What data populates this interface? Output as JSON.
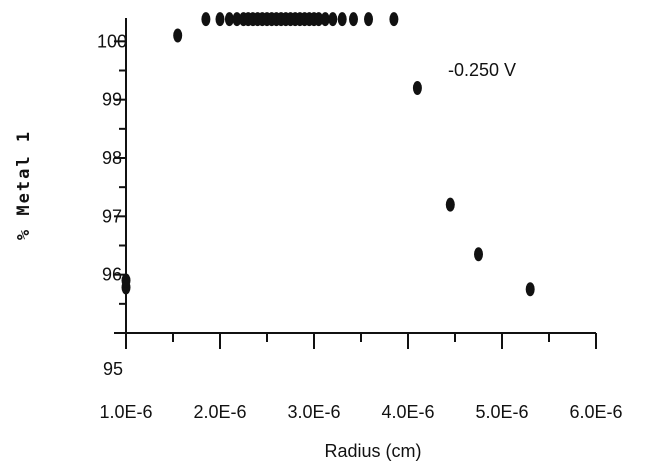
{
  "chart_data": {
    "type": "scatter",
    "title": "",
    "xlabel": "Radius (cm)",
    "ylabel": "% Metal 1",
    "annotation": "-0.250 V",
    "xlim": [
      1e-06,
      6e-06
    ],
    "ylim": [
      95,
      100.4
    ],
    "x_ticks": [
      1e-06,
      2e-06,
      3e-06,
      4e-06,
      5e-06,
      6e-06
    ],
    "x_tick_labels": [
      "1.0E-6",
      "2.0E-6",
      "3.0E-6",
      "4.0E-6",
      "5.0E-6",
      "6.0E-6"
    ],
    "y_ticks": [
      95,
      96,
      97,
      98,
      99,
      100
    ],
    "y_tick_labels": [
      "95",
      "96",
      "97",
      "98",
      "99",
      "100"
    ],
    "marker_color": "#111111",
    "grid": false,
    "points": [
      {
        "x": 1e-06,
        "y": 95.78
      },
      {
        "x": 1e-06,
        "y": 95.9
      },
      {
        "x": 1.55e-06,
        "y": 100.1
      },
      {
        "x": 1.85e-06,
        "y": 100.38
      },
      {
        "x": 2e-06,
        "y": 100.38
      },
      {
        "x": 2.1e-06,
        "y": 100.38
      },
      {
        "x": 2.18e-06,
        "y": 100.38
      },
      {
        "x": 2.25e-06,
        "y": 100.38
      },
      {
        "x": 2.3e-06,
        "y": 100.38
      },
      {
        "x": 2.35e-06,
        "y": 100.38
      },
      {
        "x": 2.4e-06,
        "y": 100.38
      },
      {
        "x": 2.45e-06,
        "y": 100.38
      },
      {
        "x": 2.5e-06,
        "y": 100.38
      },
      {
        "x": 2.55e-06,
        "y": 100.38
      },
      {
        "x": 2.6e-06,
        "y": 100.38
      },
      {
        "x": 2.65e-06,
        "y": 100.38
      },
      {
        "x": 2.7e-06,
        "y": 100.38
      },
      {
        "x": 2.75e-06,
        "y": 100.38
      },
      {
        "x": 2.8e-06,
        "y": 100.38
      },
      {
        "x": 2.85e-06,
        "y": 100.38
      },
      {
        "x": 2.9e-06,
        "y": 100.38
      },
      {
        "x": 2.95e-06,
        "y": 100.38
      },
      {
        "x": 3e-06,
        "y": 100.38
      },
      {
        "x": 3.05e-06,
        "y": 100.38
      },
      {
        "x": 3.12e-06,
        "y": 100.38
      },
      {
        "x": 3.2e-06,
        "y": 100.38
      },
      {
        "x": 3.3e-06,
        "y": 100.38
      },
      {
        "x": 3.42e-06,
        "y": 100.38
      },
      {
        "x": 3.58e-06,
        "y": 100.38
      },
      {
        "x": 3.85e-06,
        "y": 100.38
      },
      {
        "x": 4.1e-06,
        "y": 99.2
      },
      {
        "x": 4.45e-06,
        "y": 97.2
      },
      {
        "x": 4.75e-06,
        "y": 96.35
      },
      {
        "x": 5.3e-06,
        "y": 95.75
      }
    ]
  }
}
